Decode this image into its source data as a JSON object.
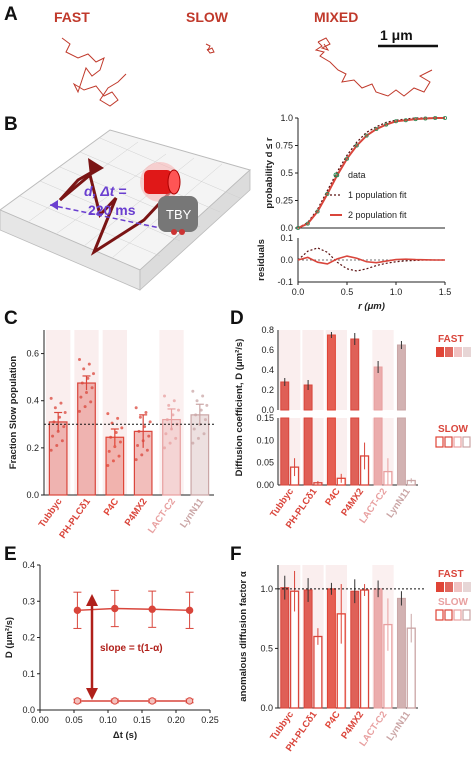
{
  "panel_letters": [
    "A",
    "B",
    "C",
    "D",
    "E",
    "F"
  ],
  "panel_a": {
    "labels": [
      "FAST",
      "SLOW",
      "MIXED"
    ],
    "scalebar": "1 μm"
  },
  "panel_b_illustration": {
    "d_label": "d, Δt =",
    "dt_value": "220 ms",
    "probe_label": "TBY"
  },
  "colors": {
    "fast": "#d9453b",
    "dark_red": "#8b1a1a",
    "tubby": "#d9453b",
    "plc": "#d9453b",
    "p4c": "#e04436",
    "p4mx2": "#d9453b",
    "lact": "#e8a0a0",
    "lyn": "#caa5a5",
    "shade": "#f6dede"
  },
  "chart_data": [
    {
      "id": "B_top",
      "type": "line",
      "xlabel": "",
      "ylabel": "probability d ≤ r",
      "xlim": [
        0,
        1.5
      ],
      "ylim": [
        0,
        1.0
      ],
      "y_ticks": [
        "0.0",
        "0.25",
        "0.5",
        "0.75",
        "1.0"
      ],
      "legend": [
        "data",
        "1 population fit",
        "2 population fit"
      ],
      "legend_position": "bottom-right",
      "series": [
        {
          "name": "data",
          "x": [
            0,
            0.1,
            0.2,
            0.3,
            0.4,
            0.5,
            0.6,
            0.7,
            0.8,
            0.9,
            1.0,
            1.1,
            1.2,
            1.3,
            1.4,
            1.5
          ],
          "values": [
            0,
            0.04,
            0.15,
            0.31,
            0.48,
            0.63,
            0.75,
            0.84,
            0.9,
            0.94,
            0.97,
            0.98,
            0.99,
            0.995,
            1.0,
            1.0
          ]
        },
        {
          "name": "1 population fit",
          "x": [
            0,
            0.1,
            0.2,
            0.3,
            0.4,
            0.5,
            0.6,
            0.7,
            0.8,
            0.9,
            1.0,
            1.1,
            1.2,
            1.3,
            1.4,
            1.5
          ],
          "values": [
            0,
            0.05,
            0.17,
            0.34,
            0.51,
            0.66,
            0.78,
            0.87,
            0.92,
            0.96,
            0.98,
            0.99,
            1.0,
            1.0,
            1.0,
            1.0
          ]
        },
        {
          "name": "2 population fit",
          "x": [
            0,
            0.1,
            0.2,
            0.3,
            0.4,
            0.5,
            0.6,
            0.7,
            0.8,
            0.9,
            1.0,
            1.1,
            1.2,
            1.3,
            1.4,
            1.5
          ],
          "values": [
            0,
            0.04,
            0.15,
            0.31,
            0.48,
            0.63,
            0.75,
            0.84,
            0.9,
            0.94,
            0.97,
            0.98,
            0.99,
            0.995,
            1.0,
            1.0
          ]
        }
      ]
    },
    {
      "id": "B_bottom",
      "type": "line",
      "xlabel": "r (μm)",
      "ylabel": "residuals",
      "xlim": [
        0,
        1.5
      ],
      "ylim": [
        -0.1,
        0.1
      ],
      "x_ticks": [
        "0.0",
        "0.5",
        "1.0",
        "1.5"
      ],
      "y_ticks": [
        "-0.1",
        "0.0",
        "0.1"
      ],
      "series": [
        {
          "name": "1 population fit",
          "x": [
            0,
            0.1,
            0.2,
            0.3,
            0.4,
            0.5,
            0.6,
            0.7,
            0.8,
            0.9,
            1.0,
            1.1,
            1.2,
            1.3,
            1.4,
            1.5
          ],
          "values": [
            0,
            0.04,
            0.055,
            0.035,
            -0.01,
            -0.04,
            -0.05,
            -0.04,
            -0.025,
            -0.015,
            -0.008,
            -0.004,
            -0.002,
            0,
            0,
            0
          ]
        },
        {
          "name": "2 population fit",
          "x": [
            0,
            0.1,
            0.2,
            0.3,
            0.4,
            0.5,
            0.6,
            0.7,
            0.8,
            0.9,
            1.0,
            1.1,
            1.2,
            1.3,
            1.4,
            1.5
          ],
          "values": [
            0,
            0.012,
            -0.01,
            -0.018,
            0.005,
            0.018,
            0.008,
            -0.008,
            -0.012,
            -0.005,
            0.002,
            0.004,
            0.002,
            0.001,
            0,
            0
          ]
        }
      ]
    },
    {
      "id": "C",
      "type": "bar",
      "ylabel": "Fraction Slow population",
      "categories": [
        "Tubbyc",
        "PH-PLCδ1",
        "P4C",
        "P4MX2",
        "LACT-C2",
        "LynN11"
      ],
      "values": [
        0.31,
        0.475,
        0.245,
        0.27,
        0.32,
        0.34
      ],
      "errors": [
        0.04,
        0.03,
        0.035,
        0.07,
        0.045,
        0.045
      ],
      "ylim": [
        0,
        0.7
      ],
      "y_ticks": [
        "0.0",
        "0.2",
        "0.4",
        "0.6"
      ],
      "reference_line": 0.3
    },
    {
      "id": "D",
      "type": "bar",
      "ylabel": "Diffusion coefficient, D (μm²/s)",
      "categories": [
        "Tubbyc",
        "PH-PLCδ1",
        "P4C",
        "P4MX2",
        "LACT-C2",
        "LynN11"
      ],
      "legend": [
        "FAST",
        "SLOW"
      ],
      "y_ticks_top": [
        "0.0",
        "0.2",
        "0.4",
        "0.6",
        "0.8"
      ],
      "y_ticks_bottom": [
        "0.00",
        "0.05",
        "0.10",
        "0.15"
      ],
      "series": [
        {
          "name": "FAST",
          "values": [
            0.28,
            0.25,
            0.75,
            0.71,
            0.43,
            0.65
          ],
          "errors": [
            0.04,
            0.05,
            0.03,
            0.06,
            0.06,
            0.04
          ]
        },
        {
          "name": "SLOW",
          "values": [
            0.04,
            0.005,
            0.015,
            0.065,
            0.03,
            0.01
          ],
          "errors": [
            0.02,
            0.004,
            0.01,
            0.03,
            0.03,
            0.005
          ]
        }
      ]
    },
    {
      "id": "E",
      "type": "scatter",
      "xlabel": "Δt (s)",
      "ylabel": "D (μm²/s)",
      "xlim": [
        0,
        0.25
      ],
      "ylim": [
        0,
        0.4
      ],
      "x_ticks": [
        "0.00",
        "0.05",
        "0.10",
        "0.15",
        "0.20",
        "0.25"
      ],
      "y_ticks": [
        "0.0",
        "0.1",
        "0.2",
        "0.3",
        "0.4"
      ],
      "annotation": "slope = t(1-α)",
      "series": [
        {
          "name": "FAST",
          "x": [
            0.055,
            0.11,
            0.165,
            0.22
          ],
          "values": [
            0.275,
            0.28,
            0.278,
            0.275
          ],
          "errors": [
            0.05,
            0.05,
            0.05,
            0.05
          ]
        },
        {
          "name": "SLOW",
          "x": [
            0.055,
            0.11,
            0.165,
            0.22
          ],
          "values": [
            0.025,
            0.025,
            0.025,
            0.025
          ],
          "errors": [
            0.005,
            0.005,
            0.005,
            0.005
          ]
        }
      ]
    },
    {
      "id": "F",
      "type": "bar",
      "ylabel": "anomalous diffusion factor α",
      "categories": [
        "Tubbyc",
        "PH-PLCδ1",
        "P4C",
        "P4MX2",
        "LACT-C2",
        "LynN11"
      ],
      "legend": [
        "FAST",
        "SLOW"
      ],
      "ylim": [
        0,
        1.2
      ],
      "y_ticks": [
        "0.0",
        "0.5",
        "1.0"
      ],
      "reference_line": 1.0,
      "series": [
        {
          "name": "FAST",
          "values": [
            1.01,
            0.99,
            1.0,
            0.98,
            1.0,
            0.92
          ],
          "errors": [
            0.1,
            0.1,
            0.05,
            0.1,
            0.07,
            0.06
          ]
        },
        {
          "name": "SLOW",
          "values": [
            0.98,
            0.6,
            0.79,
            0.99,
            0.7,
            0.67
          ],
          "errors": [
            0.17,
            0.07,
            0.25,
            0.05,
            0.22,
            0.12
          ]
        }
      ]
    }
  ]
}
